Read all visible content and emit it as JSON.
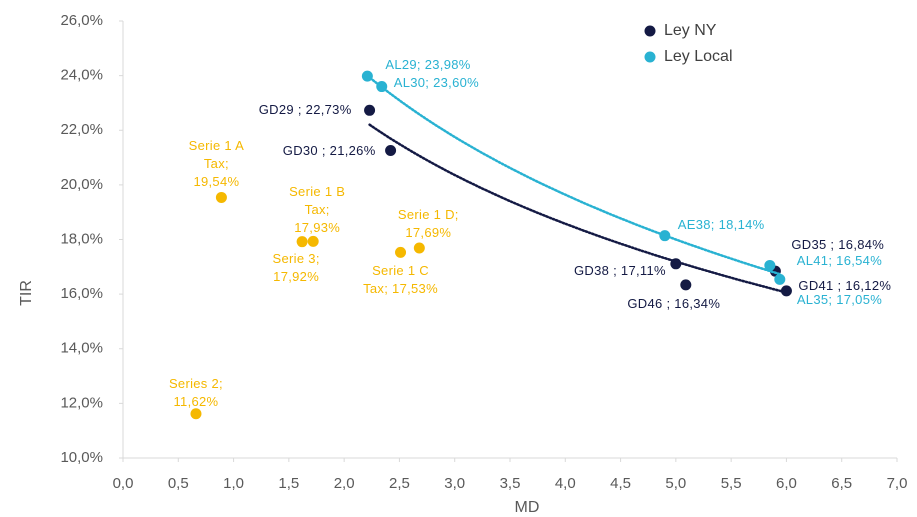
{
  "chart_data": {
    "type": "scatter",
    "x_label": "MD",
    "y_label": "TIR",
    "xlim": [
      0,
      7
    ],
    "ylim": [
      10,
      26
    ],
    "xticks": [
      {
        "value": 0,
        "label": "0,0"
      },
      {
        "value": 0.5,
        "label": "0,5"
      },
      {
        "value": 1,
        "label": "1,0"
      },
      {
        "value": 1.5,
        "label": "1,5"
      },
      {
        "value": 2,
        "label": "2,0"
      },
      {
        "value": 2.5,
        "label": "2,5"
      },
      {
        "value": 3,
        "label": "3,0"
      },
      {
        "value": 3.5,
        "label": "3,5"
      },
      {
        "value": 4,
        "label": "4,0"
      },
      {
        "value": 4.5,
        "label": "4,5"
      },
      {
        "value": 5,
        "label": "5,0"
      },
      {
        "value": 5.5,
        "label": "5,5"
      },
      {
        "value": 6,
        "label": "6,0"
      },
      {
        "value": 6.5,
        "label": "6,5"
      },
      {
        "value": 7,
        "label": "7,0"
      }
    ],
    "yticks": [
      {
        "value": 10,
        "label": "10,0%"
      },
      {
        "value": 12,
        "label": "12,0%"
      },
      {
        "value": 14,
        "label": "14,0%"
      },
      {
        "value": 16,
        "label": "16,0%"
      },
      {
        "value": 18,
        "label": "18,0%"
      },
      {
        "value": 20,
        "label": "20,0%"
      },
      {
        "value": 22,
        "label": "22,0%"
      },
      {
        "value": 24,
        "label": "24,0%"
      },
      {
        "value": 26,
        "label": "26,0%"
      }
    ],
    "grid": false,
    "legend": "upper right",
    "series": [
      {
        "name": "Ley NY",
        "color": "#141a44",
        "trendline": true,
        "x": [
          2.23,
          2.42,
          5.0,
          5.09,
          5.9,
          6.0
        ],
        "values": [
          22.73,
          21.26,
          17.11,
          16.34,
          16.84,
          16.12
        ],
        "value_labels": [
          "GD29 ; 22,73%",
          "GD30 ; 21,26%",
          "GD38 ; 17,11%",
          "GD46 ; 16,34%",
          "GD35 ; 16,84%",
          "GD41 ; 16,12%"
        ]
      },
      {
        "name": "Ley Local",
        "color": "#29b2d2",
        "trendline": true,
        "x": [
          2.21,
          2.34,
          4.9,
          5.94,
          5.85
        ],
        "values": [
          23.98,
          23.6,
          18.14,
          16.54,
          17.05
        ],
        "value_labels": [
          "AL29; 23,98%",
          "AL30; 23,60%",
          "AE38; 18,14%",
          "AL41; 16,54%",
          "AL35; 17,05%"
        ]
      },
      {
        "color": "#f5b800",
        "trendline": false,
        "x": [
          0.89,
          1.72,
          1.62,
          2.68,
          2.51,
          0.66
        ],
        "values": [
          19.54,
          17.93,
          17.92,
          17.69,
          17.53,
          11.62
        ],
        "value_labels": [
          "Serie 1 A\nTax;\n19,54%",
          "Serie 1 B\nTax;\n17,93%",
          "Serie 3;\n17,92%",
          "Serie 1 D;\n17,69%",
          "Serie 1 C\nTax; 17,53%",
          "Series 2;\n11,62%"
        ]
      }
    ]
  }
}
